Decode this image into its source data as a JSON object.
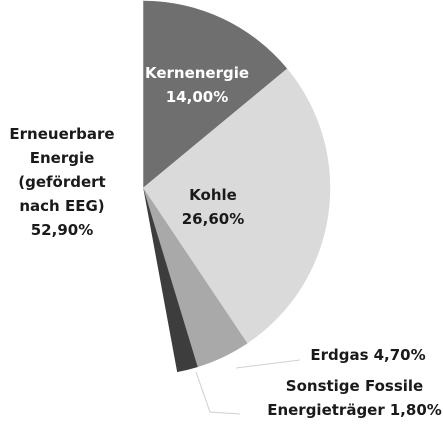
{
  "chart_data": {
    "type": "pie",
    "categories": [
      "Kernenergie",
      "Kohle",
      "Erdgas",
      "Sonstige Fossile Energieträger",
      "Erneuerbare Energie (gefördert nach EEG)"
    ],
    "values": [
      14.0,
      26.6,
      4.7,
      1.8,
      52.9
    ],
    "value_labels": [
      "14,00%",
      "26,60%",
      "4,70%",
      "1,80%",
      "52,90%"
    ],
    "colors": [
      "#6f6f6f",
      "#dadada",
      "#a9a9a9",
      "#3d3d3d",
      "#ffffff"
    ]
  }
}
